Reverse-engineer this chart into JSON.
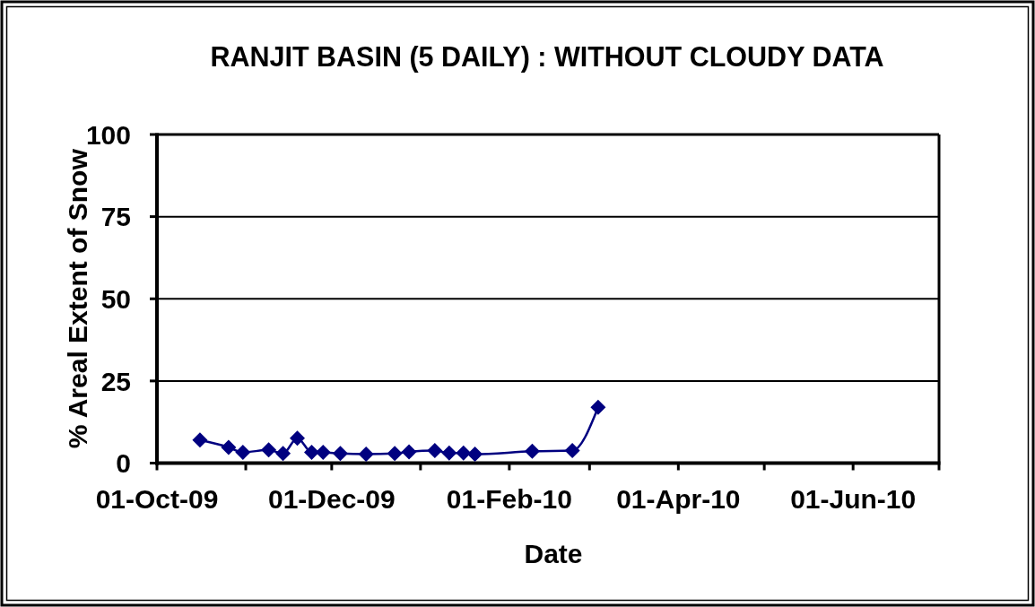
{
  "chart_data": {
    "type": "line",
    "title": "RANJIT BASIN (5 DAILY) : WITHOUT CLOUDY DATA",
    "xlabel": "Date",
    "ylabel": "% Areal Extent of Snow",
    "x": [
      "2009-10-16",
      "2009-10-26",
      "2009-10-31",
      "2009-11-09",
      "2009-11-14",
      "2009-11-19",
      "2009-11-24",
      "2009-11-28",
      "2009-12-04",
      "2009-12-13",
      "2009-12-23",
      "2009-12-28",
      "2010-01-06",
      "2010-01-11",
      "2010-01-16",
      "2010-01-20",
      "2010-02-09",
      "2010-02-23",
      "2010-03-04"
    ],
    "values": [
      7.0,
      4.8,
      3.3,
      4.0,
      2.9,
      7.6,
      3.3,
      3.3,
      2.9,
      2.7,
      2.9,
      3.4,
      3.8,
      3.1,
      3.1,
      2.7,
      3.6,
      3.8,
      17.0
    ],
    "color": "#000080",
    "marker": "diamond",
    "xlim": [
      "2009-10-01",
      "2010-07-01"
    ],
    "xticks": [
      {
        "value": "2009-10-01",
        "label": "01-Oct-09"
      },
      {
        "value": "2009-11-01",
        "label": null
      },
      {
        "value": "2009-12-01",
        "label": "01-Dec-09"
      },
      {
        "value": "2010-01-01",
        "label": null
      },
      {
        "value": "2010-02-01",
        "label": "01-Feb-10"
      },
      {
        "value": "2010-03-01",
        "label": null
      },
      {
        "value": "2010-04-01",
        "label": "01-Apr-10"
      },
      {
        "value": "2010-05-01",
        "label": null
      },
      {
        "value": "2010-06-01",
        "label": "01-Jun-10"
      },
      {
        "value": "2010-07-01",
        "label": null
      }
    ],
    "ylim": [
      0,
      100
    ],
    "yticks": [
      0,
      25,
      50,
      75,
      100
    ],
    "grid": "y"
  }
}
